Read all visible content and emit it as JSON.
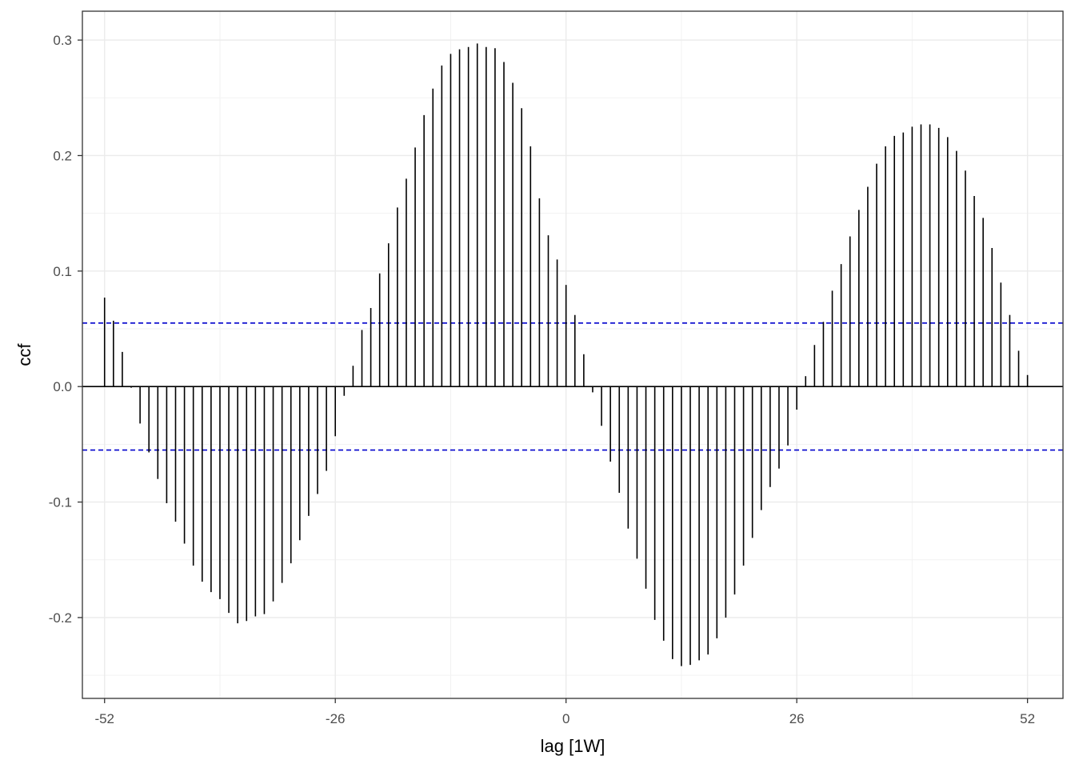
{
  "chart_data": {
    "type": "bar",
    "subtype": "correlogram",
    "title": "",
    "xlabel": "lag [1W]",
    "ylabel": "ccf",
    "xlim": [
      -54.5,
      56
    ],
    "ylim": [
      -0.27,
      0.325
    ],
    "x_ticks": [
      -52,
      -26,
      0,
      26,
      52
    ],
    "x_tick_labels": [
      "-52",
      "-26",
      "0",
      "26",
      "52"
    ],
    "y_ticks": [
      -0.2,
      -0.1,
      0.0,
      0.1,
      0.2,
      0.3
    ],
    "y_tick_labels": [
      "-0.2",
      "-0.1",
      "0.0",
      "0.1",
      "0.2",
      "0.3"
    ],
    "grid": true,
    "theme": "bw",
    "zero_line": 0.0,
    "confidence_bounds": {
      "upper": 0.055,
      "lower": -0.055,
      "color": "#0000cc",
      "style": "dashed"
    },
    "bar_color": "#000000",
    "lags": [
      -52,
      -51,
      -50,
      -49,
      -48,
      -47,
      -46,
      -45,
      -44,
      -43,
      -42,
      -41,
      -40,
      -39,
      -38,
      -37,
      -36,
      -35,
      -34,
      -33,
      -32,
      -31,
      -30,
      -29,
      -28,
      -27,
      -26,
      -25,
      -24,
      -23,
      -22,
      -21,
      -20,
      -19,
      -18,
      -17,
      -16,
      -15,
      -14,
      -13,
      -12,
      -11,
      -10,
      -9,
      -8,
      -7,
      -6,
      -5,
      -4,
      -3,
      -2,
      -1,
      0,
      1,
      2,
      3,
      4,
      5,
      6,
      7,
      8,
      9,
      10,
      11,
      12,
      13,
      14,
      15,
      16,
      17,
      18,
      19,
      20,
      21,
      22,
      23,
      24,
      25,
      26,
      27,
      28,
      29,
      30,
      31,
      32,
      33,
      34,
      35,
      36,
      37,
      38,
      39,
      40,
      41,
      42,
      43,
      44,
      45,
      46,
      47,
      48,
      49,
      50,
      51,
      52
    ],
    "values": [
      0.077,
      0.057,
      0.03,
      -0.001,
      -0.032,
      -0.057,
      -0.08,
      -0.101,
      -0.117,
      -0.136,
      -0.155,
      -0.169,
      -0.178,
      -0.184,
      -0.196,
      -0.205,
      -0.203,
      -0.199,
      -0.197,
      -0.186,
      -0.17,
      -0.153,
      -0.133,
      -0.112,
      -0.093,
      -0.073,
      -0.043,
      -0.008,
      0.018,
      0.049,
      0.068,
      0.098,
      0.124,
      0.155,
      0.18,
      0.207,
      0.235,
      0.258,
      0.278,
      0.288,
      0.292,
      0.294,
      0.297,
      0.294,
      0.293,
      0.281,
      0.263,
      0.241,
      0.208,
      0.163,
      0.131,
      0.11,
      0.088,
      0.062,
      0.028,
      -0.005,
      -0.034,
      -0.065,
      -0.092,
      -0.123,
      -0.149,
      -0.175,
      -0.202,
      -0.22,
      -0.236,
      -0.242,
      -0.241,
      -0.237,
      -0.232,
      -0.218,
      -0.2,
      -0.18,
      -0.155,
      -0.131,
      -0.107,
      -0.087,
      -0.071,
      -0.051,
      -0.02,
      0.009,
      0.036,
      0.056,
      0.083,
      0.106,
      0.13,
      0.153,
      0.173,
      0.193,
      0.208,
      0.217,
      0.22,
      0.225,
      0.227,
      0.227,
      0.224,
      0.216,
      0.204,
      0.187,
      0.165,
      0.146,
      0.12,
      0.09,
      0.062,
      0.031,
      0.01
    ]
  }
}
